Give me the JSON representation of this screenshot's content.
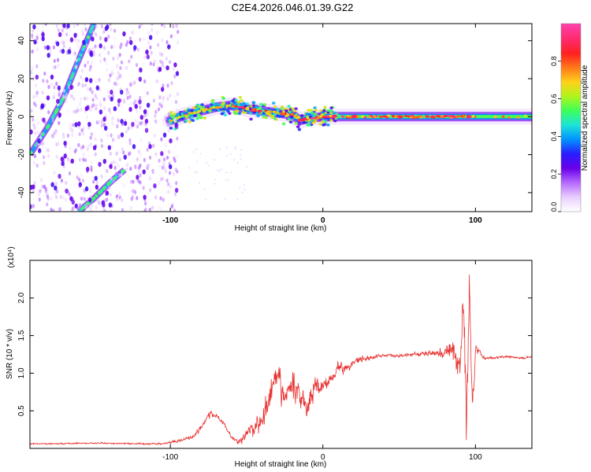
{
  "title": "C2E4.2026.046.01.39.G22",
  "colors": {
    "background": "#ffffff",
    "snr_line": "#e8312f",
    "axis": "#000000",
    "colormap": [
      "#ffffff",
      "#e9ccff",
      "#b469ff",
      "#6a00e8",
      "#2a1cff",
      "#0093ff",
      "#1de3d8",
      "#3cff5c",
      "#aef51c",
      "#ffd21a",
      "#ff7a1a",
      "#ff2020",
      "#ff2a6e",
      "#ff3fa8"
    ]
  },
  "chart_data": [
    {
      "type": "heatmap",
      "xlabel": "Height of straight line (km)",
      "ylabel": "Frequency (Hz)",
      "xlim": [
        -192,
        137
      ],
      "ylim": [
        -50,
        49
      ],
      "xticks": [
        -100,
        0,
        100
      ],
      "xtick_labels": [
        "-100",
        "0",
        "100"
      ],
      "yticks": [
        -40,
        -20,
        0,
        20,
        40
      ],
      "ytick_labels": [
        "-40",
        "-20",
        "0",
        "20",
        "40"
      ],
      "colorbar": {
        "label": "Normalized spectral amplitude",
        "range": [
          0,
          1
        ],
        "ticks": [
          0.0,
          0.2,
          0.4,
          0.6,
          0.8
        ],
        "tick_labels": [
          "0.0",
          "0.2",
          "0.4",
          "0.6",
          "0.8"
        ]
      },
      "features": [
        {
          "name": "main-tone",
          "x": [
            -100,
            -90,
            -80,
            -70,
            -60,
            -50,
            -40,
            -30,
            -20,
            -15,
            -10,
            0,
            20,
            40,
            60,
            80,
            95,
            137
          ],
          "y": [
            -2,
            1,
            3,
            5,
            6,
            4,
            3,
            2,
            1,
            -2,
            -1,
            0,
            0,
            0,
            0,
            0,
            0,
            0
          ],
          "amplitude": 0.7
        },
        {
          "name": "diagonal-streak-1",
          "x": [
            -192,
            -180,
            -170,
            -160,
            -150
          ],
          "y": [
            -20,
            -5,
            10,
            30,
            49
          ],
          "amplitude": 0.35
        },
        {
          "name": "diagonal-streak-2",
          "x": [
            -160,
            -150,
            -140,
            -130
          ],
          "y": [
            -50,
            -43,
            -35,
            -28
          ],
          "amplitude": 0.3
        },
        {
          "name": "noise-region",
          "x_range": [
            -192,
            -95
          ],
          "y_range": [
            -50,
            49
          ],
          "amplitude": 0.05
        }
      ]
    },
    {
      "type": "line",
      "xlabel": "Height of straight line (km)",
      "ylabel": "SNR (10 * v/v)",
      "y_scale_label": "(x10⁴)",
      "xlim": [
        -192,
        137
      ],
      "ylim": [
        0,
        25000
      ],
      "xticks": [
        -100,
        0,
        100
      ],
      "xtick_labels": [
        "-100",
        "0",
        "100"
      ],
      "yticks": [
        5000,
        10000,
        15000,
        20000
      ],
      "ytick_labels": [
        "0.5",
        "1.0",
        "1.5",
        "2.0"
      ],
      "series": [
        {
          "name": "SNR",
          "x": [
            -192,
            -150,
            -105,
            -95,
            -85,
            -80,
            -75,
            -70,
            -65,
            -60,
            -55,
            -50,
            -45,
            -40,
            -35,
            -30,
            -25,
            -20,
            -15,
            -10,
            -5,
            0,
            5,
            10,
            15,
            20,
            25,
            30,
            40,
            50,
            60,
            70,
            80,
            85,
            90,
            92,
            94,
            96,
            98,
            100,
            105,
            110,
            120,
            130,
            137
          ],
          "values": [
            600,
            700,
            600,
            1000,
            1600,
            2800,
            4500,
            4400,
            3300,
            1500,
            800,
            2000,
            2800,
            3800,
            6500,
            9500,
            6500,
            8500,
            7300,
            5200,
            8500,
            8300,
            9300,
            11000,
            10500,
            11500,
            12000,
            12000,
            12400,
            12300,
            12500,
            12600,
            12800,
            13000,
            11000,
            21000,
            2000,
            22000,
            5000,
            13500,
            12100,
            12000,
            12200,
            12000,
            12100
          ],
          "jitter": [
            120,
            120,
            150,
            250,
            350,
            500,
            500,
            400,
            450,
            350,
            500,
            900,
            1200,
            1600,
            2200,
            2300,
            2000,
            2200,
            2000,
            1600,
            1500,
            1200,
            1000,
            900,
            700,
            600,
            450,
            350,
            250,
            250,
            300,
            400,
            900,
            1500,
            2500,
            3500,
            3500,
            3000,
            2500,
            600,
            250,
            250,
            200,
            200,
            200
          ]
        }
      ]
    }
  ]
}
